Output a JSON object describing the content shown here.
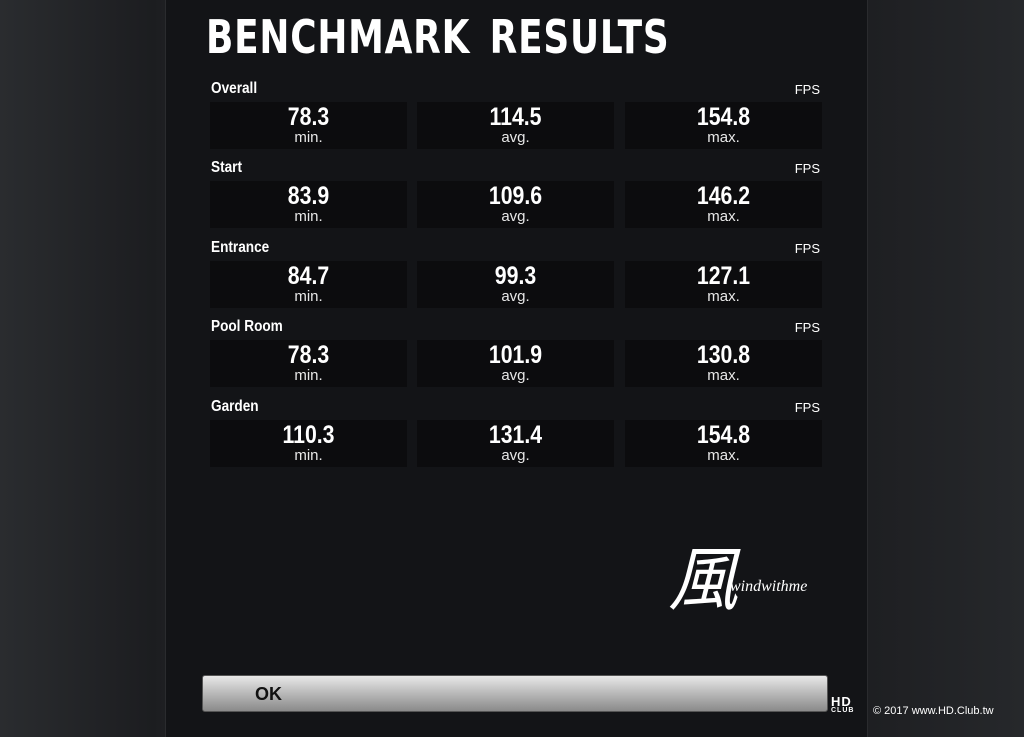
{
  "title": "BENCHMARK RESULTS",
  "unit": "FPS",
  "captions": {
    "min": "min.",
    "avg": "avg.",
    "max": "max."
  },
  "sections": [
    {
      "label": "Overall",
      "min": "78.3",
      "avg": "114.5",
      "max": "154.8"
    },
    {
      "label": "Start",
      "min": "83.9",
      "avg": "109.6",
      "max": "146.2"
    },
    {
      "label": "Entrance",
      "min": "84.7",
      "avg": "99.3",
      "max": "127.1"
    },
    {
      "label": "Pool Room",
      "min": "78.3",
      "avg": "101.9",
      "max": "130.8"
    },
    {
      "label": "Garden",
      "min": "110.3",
      "avg": "131.4",
      "max": "154.8"
    }
  ],
  "ok_label": "OK",
  "watermark": {
    "kanji": "風",
    "signature": "windwithme"
  },
  "hd_logo": {
    "top": "HD",
    "bottom": "CLUB"
  },
  "copyright": "© 2017 www.HD.Club.tw"
}
